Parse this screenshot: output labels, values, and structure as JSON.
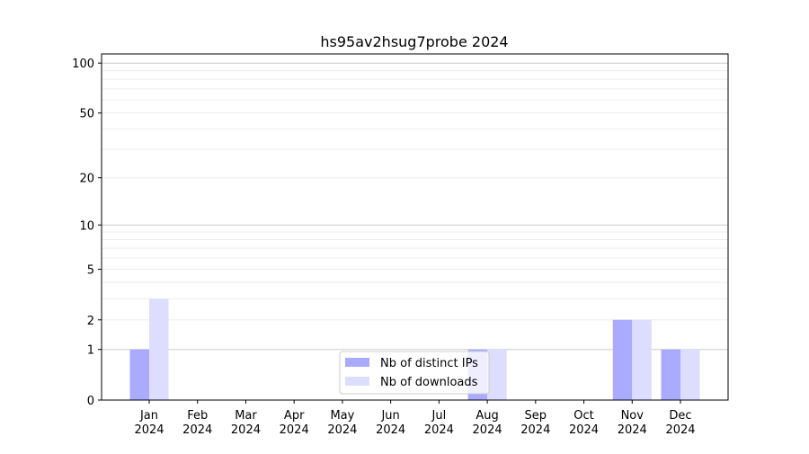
{
  "chart_data": {
    "type": "bar",
    "title": "hs95av2hsug7probe 2024",
    "xlabel": "",
    "ylabel": "",
    "yscale": "symlog (log10(1+y))",
    "ylim": [
      0,
      110
    ],
    "yticks": [
      0,
      1,
      2,
      5,
      10,
      20,
      50,
      100
    ],
    "grid": true,
    "legend_position": "bottom-center",
    "categories": [
      "Jan\n2024",
      "Feb\n2024",
      "Mar\n2024",
      "Apr\n2024",
      "May\n2024",
      "Jun\n2024",
      "Jul\n2024",
      "Aug\n2024",
      "Sep\n2024",
      "Oct\n2024",
      "Nov\n2024",
      "Dec\n2024"
    ],
    "series": [
      {
        "name": "Nb of distinct IPs",
        "color": "#aaaaff",
        "values": [
          1,
          0,
          0,
          0,
          0,
          0,
          0,
          1,
          0,
          0,
          2,
          1
        ]
      },
      {
        "name": "Nb of downloads",
        "color": "#ddddff",
        "values": [
          3,
          0,
          0,
          0,
          0,
          0,
          0,
          1,
          0,
          0,
          2,
          1
        ]
      }
    ]
  }
}
